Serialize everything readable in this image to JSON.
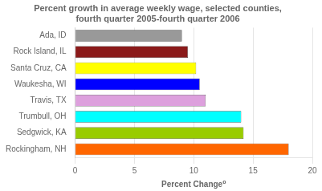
{
  "chart_data": {
    "type": "bar",
    "orientation": "horizontal",
    "title": "Percent growth in average weekly wage, selected counties,\nfourth quarter 2005-fourth quarter 2006",
    "xlabel": "Percent Change⁰",
    "categories": [
      "Ada, ID",
      "Rock Island, IL",
      "Santa Cruz, CA",
      "Waukesha, WI",
      "Travis, TX",
      "Trumbull, OH",
      "Sedgwick, KA",
      "Rockingham, NH"
    ],
    "values": [
      9.0,
      9.5,
      10.2,
      10.5,
      11.0,
      14.0,
      14.2,
      18.0
    ],
    "colors": [
      "#999999",
      "#8B1A1A",
      "#FFFF00",
      "#0000FF",
      "#DDA0DD",
      "#00FFFF",
      "#99CC00",
      "#FF6600"
    ],
    "xlim": [
      0,
      20
    ],
    "xticks": [
      0,
      5,
      10,
      15,
      20
    ],
    "grid": true
  }
}
